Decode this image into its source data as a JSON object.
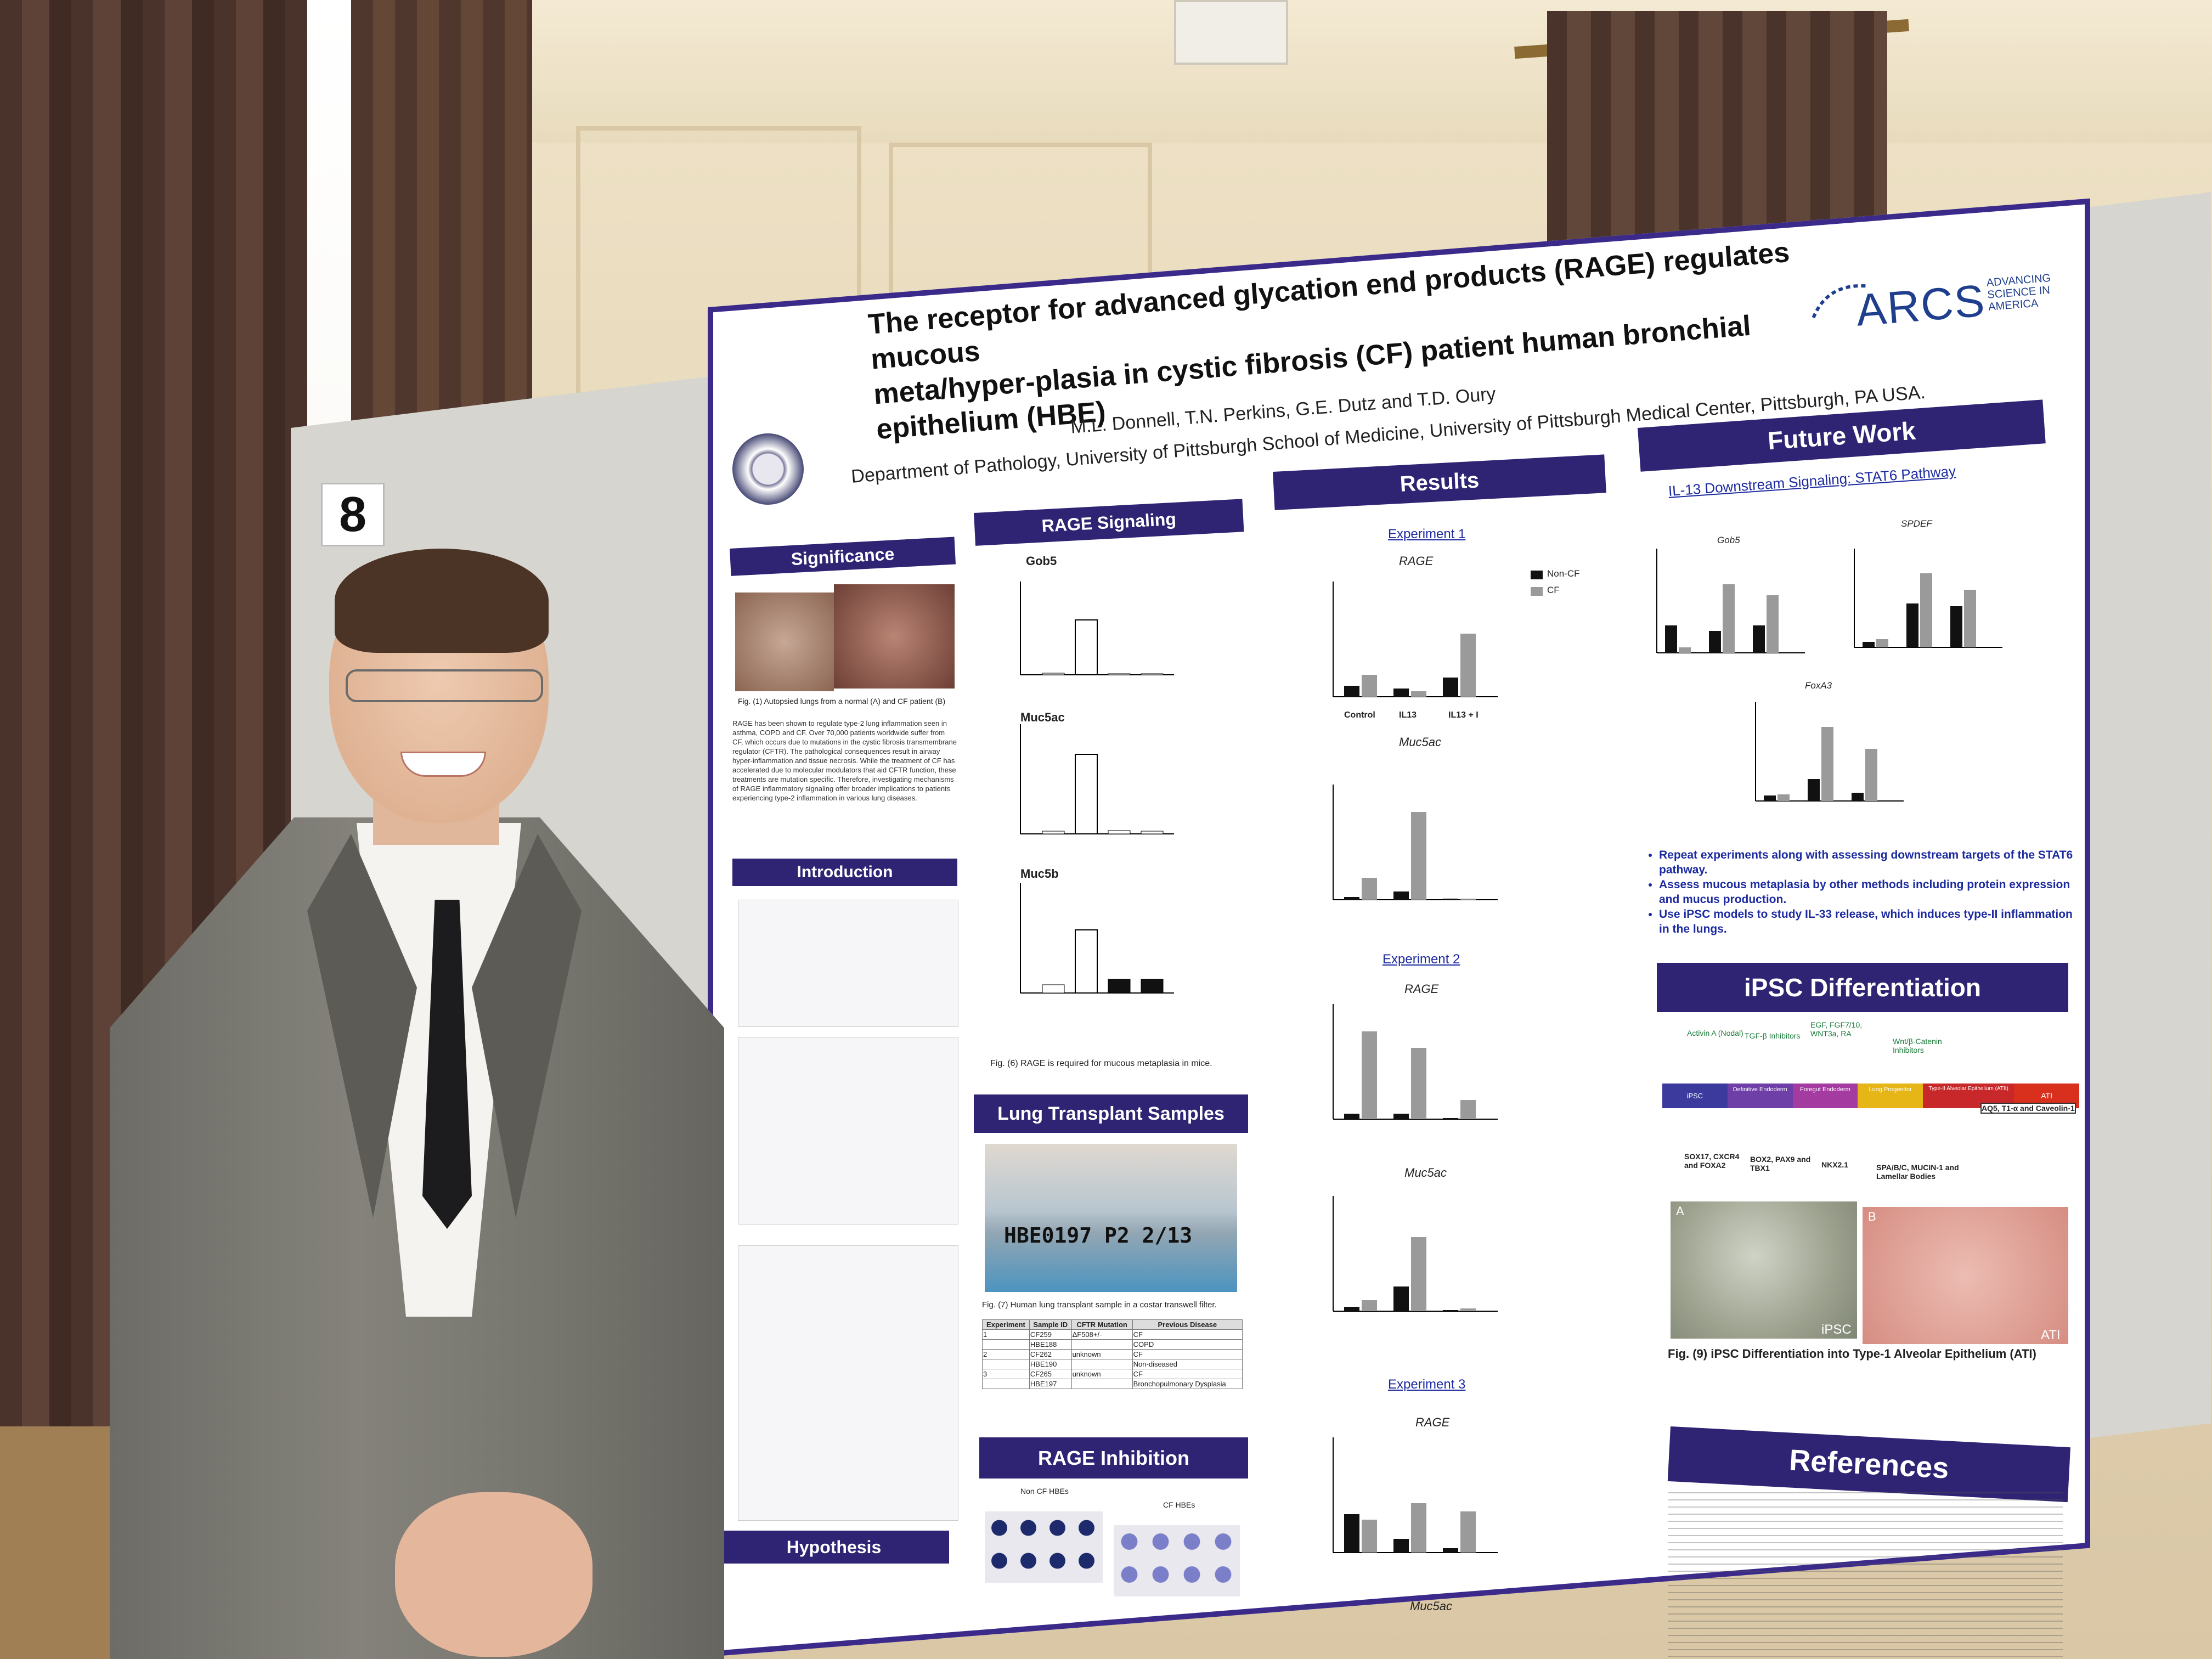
{
  "scene": {
    "board_number": "8"
  },
  "poster": {
    "title_line1": "The receptor for advanced glycation end products (RAGE) regulates mucous",
    "title_line2": "meta/hyper-plasia in cystic fibrosis (CF) patient human bronchial epithelium (HBE)",
    "authors": "M.L. Donnell, T.N. Perkins, G.E. Dutz and T.D. Oury",
    "affiliation": "Department of Pathology, University of Pittsburgh School of Medicine, University of Pittsburgh Medical Center, Pittsburgh, PA USA.",
    "logo": {
      "name": "ARCS",
      "tagline": "ADVANCING SCIENCE IN AMERICA"
    },
    "sections": {
      "significance": "Significance",
      "introduction": "Introduction",
      "hypothesis": "Hypothesis",
      "rage_signaling": "RAGE Signaling",
      "lung_transplant": "Lung Transplant Samples",
      "rage_inhibition": "RAGE Inhibition",
      "results": "Results",
      "future_work": "Future Work",
      "ipsc": "iPSC Differentiation",
      "references": "References"
    },
    "significance_caption": "Fig. (1) Autopsied lungs from a normal (A) and CF patient (B)",
    "significance_text": "RAGE has been shown to regulate type-2 lung inflammation seen in asthma, COPD and CF. Over 70,000 patients worldwide suffer from CF, which occurs due to mutations in the cystic fibrosis transmembrane regulator (CFTR). The pathological consequences result in airway hyper-inflammation and tissue necrosis. While the treatment of CF has accelerated due to molecular modulators that aid CFTR function, these treatments are mutation specific. Therefore, investigating mechanisms of RAGE inflammatory signaling offer broader implications to patients experiencing type-2 inflammation in various lung diseases.",
    "rage_charts": [
      "Gob5",
      "Muc5ac",
      "Muc5b"
    ],
    "rage_caption": "Fig. (6) RAGE is required for mucous metaplasia in mice.",
    "transplant_caption": "Fig. (7) Human lung transplant sample in a costar transwell filter.",
    "transplant_label": "HBE0197 P2 2/13",
    "table": {
      "headers": [
        "Experiment",
        "Sample ID",
        "CFTR Mutation",
        "Previous Disease"
      ],
      "rows": [
        [
          "1",
          "CF259",
          "ΔF508+/-",
          "CF"
        ],
        [
          "",
          "HBE188",
          "",
          "COPD"
        ],
        [
          "2",
          "CF262",
          "unknown",
          "CF"
        ],
        [
          "",
          "HBE190",
          "",
          "Non-diseased"
        ],
        [
          "3",
          "CF265",
          "unknown",
          "CF"
        ],
        [
          "",
          "HBE197",
          "",
          "Bronchopulmonary Dysplasia"
        ]
      ]
    },
    "inhibition_labels": [
      "Non CF HBEs",
      "CF HBEs"
    ],
    "results": {
      "experiment1": "Experiment 1",
      "experiment2": "Experiment 2",
      "experiment3": "Experiment 3",
      "rage": "RAGE",
      "muc5ac": "Muc5ac",
      "legend_noncf": "Non-CF",
      "legend_cf": "CF",
      "xlabels": [
        "Control",
        "IL13",
        "IL13 + I"
      ]
    },
    "future": {
      "subtitle": "IL-13 Downstream Signaling: STAT6 Pathway",
      "charts": [
        "Gob5",
        "SPDEF",
        "FoxA3"
      ],
      "bullets": [
        "Repeat experiments along with assessing downstream targets of the STAT6 pathway.",
        "Assess mucous metaplasia by other methods including protein expression and mucus production.",
        "Use iPSC models to study IL-33 release, which induces type-II inflammation in the lungs."
      ]
    },
    "ipsc": {
      "stages": [
        "iPSC",
        "Definitive Endoderm",
        "Foregut Endoderm",
        "Lung Progenitor",
        "Type-II Alveolar Epithelium (ATII)",
        "ATI"
      ],
      "end_marker": "AQ5, T1-α and Caveolin-1",
      "inputs": [
        "Activin A (Nodal)",
        "TGF-β Inhibitors",
        "EGF, FGF7/10, WNT3a, RA",
        "Wnt/β-Catenin Inhibitors"
      ],
      "markers": [
        "SOX17, CXCR4 and FOXA2",
        "BOX2, PAX9 and TBX1",
        "NKX2.1",
        "SPA/B/C, MUCIN-1 and Lamellar Bodies"
      ],
      "caption": "Fig. (9) iPSC Differentiation into Type-1 Alveolar Epithelium (ATI)",
      "image_labels": [
        "A",
        "B",
        "iPSC",
        "ATI"
      ]
    }
  },
  "colors": {
    "poster_header": "#2e2473",
    "link_blue": "#1c2aa0",
    "bar_dark": "#111111",
    "bar_grey": "#9a9a9a"
  }
}
